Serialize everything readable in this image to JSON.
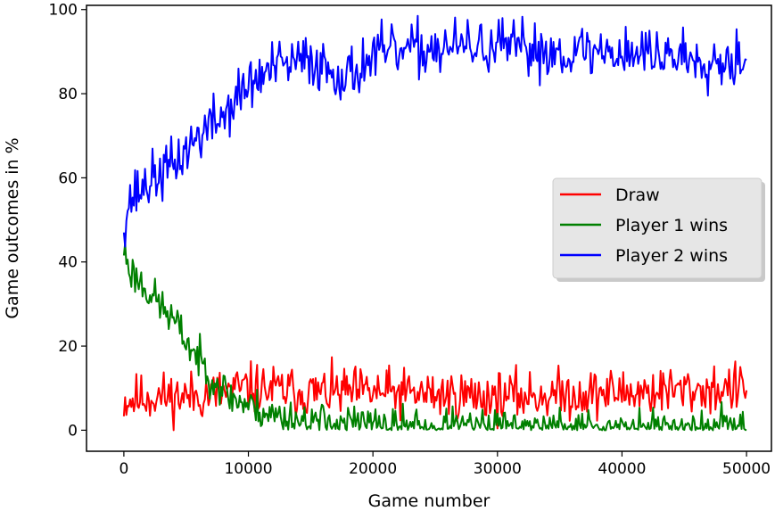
{
  "chart_data": {
    "type": "line",
    "title": "",
    "xlabel": "Game number",
    "ylabel": "Game outcomes in %",
    "xlim": [
      -3000,
      52000
    ],
    "ylim": [
      -5,
      101
    ],
    "xticks": [
      0,
      10000,
      20000,
      30000,
      40000,
      50000
    ],
    "xtick_labels": [
      "0",
      "10000",
      "20000",
      "30000",
      "40000",
      "50000"
    ],
    "yticks": [
      0,
      20,
      40,
      60,
      80,
      100
    ],
    "ytick_labels": [
      "0",
      "20",
      "40",
      "60",
      "80",
      "100"
    ],
    "grid": false,
    "legend_position": "center-right",
    "x_range": [
      0,
      50000
    ],
    "sample_step": 100,
    "series": [
      {
        "name": "Draw",
        "color": "#ff0000",
        "keypoints": [
          [
            0,
            7
          ],
          [
            2000,
            8
          ],
          [
            5000,
            8
          ],
          [
            8000,
            9
          ],
          [
            10000,
            10
          ],
          [
            15000,
            9
          ],
          [
            20000,
            9
          ],
          [
            30000,
            8
          ],
          [
            40000,
            9
          ],
          [
            50000,
            10
          ]
        ],
        "noise": 4.5
      },
      {
        "name": "Player 1 wins",
        "color": "#008000",
        "keypoints": [
          [
            0,
            43
          ],
          [
            500,
            38
          ],
          [
            2000,
            33
          ],
          [
            4000,
            26
          ],
          [
            5500,
            19
          ],
          [
            7000,
            13
          ],
          [
            8500,
            8
          ],
          [
            10000,
            6
          ],
          [
            12000,
            3.5
          ],
          [
            15000,
            2
          ],
          [
            18000,
            2
          ],
          [
            20000,
            1
          ],
          [
            23000,
            0.6
          ],
          [
            30000,
            0.4
          ],
          [
            40000,
            0.4
          ],
          [
            46000,
            0.7
          ],
          [
            48000,
            1.5
          ],
          [
            50000,
            1
          ]
        ],
        "noise": 3.5
      },
      {
        "name": "Player 2 wins",
        "color": "#0000ff",
        "keypoints": [
          [
            0,
            50
          ],
          [
            500,
            55
          ],
          [
            2000,
            59
          ],
          [
            4000,
            63
          ],
          [
            6000,
            70
          ],
          [
            8000,
            75
          ],
          [
            10000,
            82
          ],
          [
            12000,
            86
          ],
          [
            15000,
            88
          ],
          [
            18000,
            84
          ],
          [
            20000,
            89
          ],
          [
            25000,
            91
          ],
          [
            30000,
            91
          ],
          [
            35000,
            90
          ],
          [
            40000,
            90
          ],
          [
            45000,
            89
          ],
          [
            48000,
            88
          ],
          [
            50000,
            89
          ]
        ],
        "noise": 5
      }
    ]
  }
}
